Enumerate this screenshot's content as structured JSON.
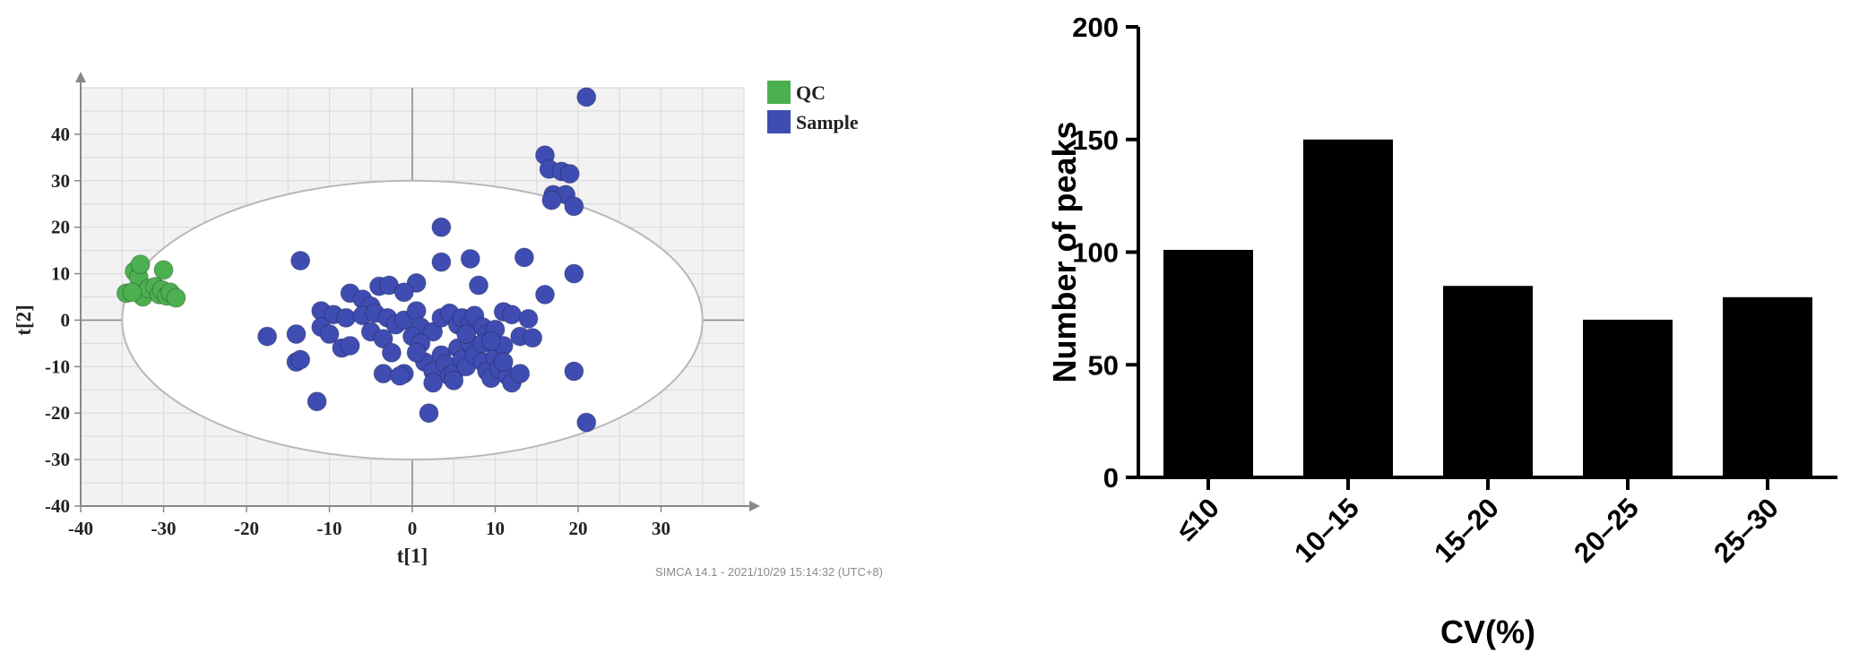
{
  "chart_data": [
    {
      "type": "scatter",
      "xlabel": "t[1]",
      "ylabel": "t[2]",
      "xlim": [
        -40,
        40
      ],
      "ylim": [
        -40,
        50
      ],
      "x_ticks": [
        -40,
        -30,
        -20,
        -10,
        0,
        10,
        20,
        30
      ],
      "y_ticks": [
        -40,
        -30,
        -20,
        -10,
        0,
        10,
        20,
        30,
        40
      ],
      "grid": true,
      "legend": "top-right",
      "footer": "SIMCA 14.1 - 2021/10/29 15:14:32 (UTC+8)",
      "series": [
        {
          "name": "QC",
          "color": "#4caf50",
          "points": [
            [
              -34.5,
              5.8
            ],
            [
              -33.5,
              10.5
            ],
            [
              -33.0,
              9.2
            ],
            [
              -32.8,
              12.0
            ],
            [
              -32.5,
              5.0
            ],
            [
              -31.8,
              6.8
            ],
            [
              -31.0,
              7.2
            ],
            [
              -30.5,
              5.5
            ],
            [
              -30.2,
              6.5
            ],
            [
              -30.0,
              10.8
            ],
            [
              -29.6,
              5.2
            ],
            [
              -29.2,
              6.0
            ],
            [
              -28.5,
              4.8
            ],
            [
              -33.8,
              6.0
            ]
          ]
        },
        {
          "name": "Sample",
          "color": "#3f4db2",
          "points": [
            [
              21.0,
              48.0
            ],
            [
              16.0,
              35.5
            ],
            [
              16.5,
              32.5
            ],
            [
              18.0,
              32.0
            ],
            [
              19.0,
              31.5
            ],
            [
              17.0,
              27.0
            ],
            [
              18.5,
              27.0
            ],
            [
              16.8,
              25.8
            ],
            [
              19.5,
              24.5
            ],
            [
              3.5,
              20.0
            ],
            [
              -13.5,
              12.8
            ],
            [
              3.5,
              12.5
            ],
            [
              7.0,
              13.2
            ],
            [
              13.5,
              13.5
            ],
            [
              19.5,
              10.0
            ],
            [
              0.5,
              8.0
            ],
            [
              8.0,
              7.5
            ],
            [
              -4.0,
              7.3
            ],
            [
              -2.8,
              7.5
            ],
            [
              -7.5,
              5.8
            ],
            [
              -6.0,
              4.5
            ],
            [
              -1.0,
              6.0
            ],
            [
              16.0,
              5.5
            ],
            [
              -5.0,
              3.0
            ],
            [
              -11.0,
              2.0
            ],
            [
              -9.5,
              1.2
            ],
            [
              -8.0,
              0.5
            ],
            [
              -6.0,
              1.0
            ],
            [
              -4.5,
              1.5
            ],
            [
              -3.0,
              0.5
            ],
            [
              -2.0,
              -1.0
            ],
            [
              -1.0,
              0.0
            ],
            [
              0.5,
              2.0
            ],
            [
              1.0,
              -1.5
            ],
            [
              2.5,
              -2.5
            ],
            [
              3.5,
              0.5
            ],
            [
              4.5,
              1.5
            ],
            [
              5.5,
              -1.0
            ],
            [
              6.0,
              0.5
            ],
            [
              7.0,
              -0.5
            ],
            [
              7.5,
              1.0
            ],
            [
              8.5,
              -1.5
            ],
            [
              9.0,
              -3.0
            ],
            [
              10.0,
              -2.0
            ],
            [
              11.0,
              1.8
            ],
            [
              12.0,
              1.2
            ],
            [
              13.0,
              -3.5
            ],
            [
              14.0,
              0.3
            ],
            [
              14.5,
              -3.8
            ],
            [
              -11.0,
              -1.5
            ],
            [
              -10.0,
              -3.0
            ],
            [
              -8.5,
              -6.0
            ],
            [
              -7.5,
              -5.5
            ],
            [
              -5.0,
              -2.5
            ],
            [
              -3.5,
              -4.0
            ],
            [
              -2.5,
              -7.0
            ],
            [
              -1.0,
              -11.5
            ],
            [
              0.0,
              -3.5
            ],
            [
              1.0,
              -5.0
            ],
            [
              1.5,
              -9.0
            ],
            [
              2.5,
              -11.0
            ],
            [
              3.5,
              -7.5
            ],
            [
              4.0,
              -9.5
            ],
            [
              4.5,
              -12.0
            ],
            [
              5.0,
              -11.5
            ],
            [
              5.5,
              -6.0
            ],
            [
              6.0,
              -8.5
            ],
            [
              6.5,
              -10.0
            ],
            [
              7.0,
              -5.0
            ],
            [
              7.5,
              -7.5
            ],
            [
              8.5,
              -9.0
            ],
            [
              9.0,
              -11.0
            ],
            [
              9.5,
              -12.5
            ],
            [
              10.0,
              -8.0
            ],
            [
              10.5,
              -10.5
            ],
            [
              11.0,
              -5.5
            ],
            [
              11.5,
              -12.0
            ],
            [
              12.0,
              -13.5
            ],
            [
              13.0,
              -11.5
            ],
            [
              -17.5,
              -3.5
            ],
            [
              -14.0,
              -3.0
            ],
            [
              -14.0,
              -9.0
            ],
            [
              -13.5,
              -8.5
            ],
            [
              -11.5,
              -17.5
            ],
            [
              -3.5,
              -11.5
            ],
            [
              -1.5,
              -12.0
            ],
            [
              2.0,
              -20.0
            ],
            [
              2.5,
              -13.5
            ],
            [
              5.0,
              -13.0
            ],
            [
              0.5,
              -7.0
            ],
            [
              6.5,
              -3.0
            ],
            [
              8.5,
              -5.0
            ],
            [
              9.5,
              -4.5
            ],
            [
              11.0,
              -9.0
            ],
            [
              19.5,
              -11.0
            ],
            [
              21.0,
              -22.0
            ]
          ]
        }
      ],
      "ellipse": {
        "cx": 0,
        "cy": 0,
        "rx": 35,
        "ry": 30
      }
    },
    {
      "type": "bar",
      "categories": [
        "≤10",
        "10–15",
        "15–20",
        "20–25",
        "25–30"
      ],
      "values": [
        101,
        150,
        85,
        70,
        80
      ],
      "xlabel": "CV(%)",
      "ylabel": "Number of peaks",
      "ylim": [
        0,
        200
      ],
      "y_ticks": [
        0,
        50,
        100,
        150,
        200
      ],
      "grid": false,
      "bar_color": "#000000"
    }
  ]
}
